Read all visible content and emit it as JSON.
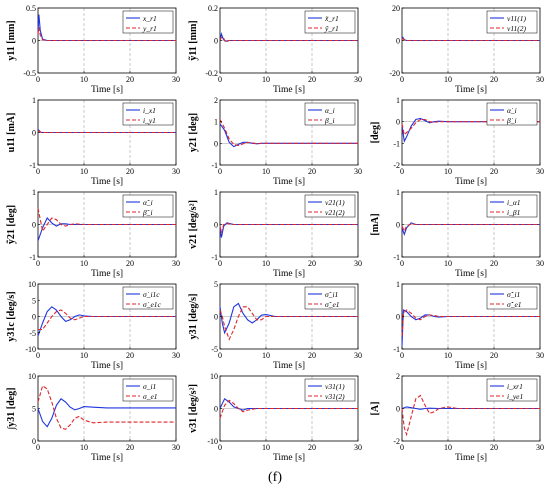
{
  "caption": "(f)",
  "colors": {
    "series1": "#1f35e0",
    "series2": "#e0262b",
    "grid": "#bdbdbd",
    "axis": "#000000"
  },
  "chart_data": [
    {
      "type": "line",
      "ylabel": "y11 [mm]",
      "xlabel": "Time [s]",
      "xlim": [
        0,
        30
      ],
      "ylim": [
        -0.5,
        0.5
      ],
      "xticks": [
        "0",
        "10",
        "20",
        "30"
      ],
      "yticks": [
        "-0.5",
        "0",
        "0.5"
      ],
      "series": [
        {
          "name": "x_r1",
          "x": [
            0,
            0.2,
            0.5,
            1,
            2,
            3,
            30
          ],
          "values": [
            0.12,
            0.4,
            0.15,
            0.02,
            0,
            0,
            0
          ]
        },
        {
          "name": "y_r1",
          "x": [
            0,
            0.2,
            0.5,
            1,
            2,
            3,
            30
          ],
          "values": [
            0.1,
            0.2,
            0.08,
            0.01,
            0,
            0,
            0
          ]
        }
      ]
    },
    {
      "type": "line",
      "ylabel": "ỹ11 [mm]",
      "xlabel": "Time [s]",
      "xlim": [
        0,
        30
      ],
      "ylim": [
        -0.2,
        0.2
      ],
      "xticks": [
        "0",
        "10",
        "20",
        "30"
      ],
      "yticks": [
        "-0.2",
        "0",
        "0.2"
      ],
      "series": [
        {
          "name": "x̃_r1",
          "x": [
            0,
            0.3,
            0.7,
            1.2,
            2,
            3,
            30
          ],
          "values": [
            0,
            0.04,
            0.01,
            -0.005,
            0,
            0,
            0
          ]
        },
        {
          "name": "ỹ_r1",
          "x": [
            0,
            0.3,
            0.7,
            1.2,
            2,
            3,
            30
          ],
          "values": [
            0,
            0.02,
            0.02,
            -0.01,
            0,
            0,
            0
          ]
        }
      ]
    },
    {
      "type": "line",
      "ylabel": "",
      "xlabel": "Time [s]",
      "xlim": [
        0,
        30
      ],
      "ylim": [
        -20,
        20
      ],
      "xticks": [
        "0",
        "10",
        "20",
        "30"
      ],
      "yticks": [
        "-20",
        "0",
        "20"
      ],
      "series": [
        {
          "name": "v11(1)",
          "x": [
            0,
            0.2,
            0.5,
            1,
            30
          ],
          "values": [
            1.5,
            2,
            0.5,
            0,
            0
          ]
        },
        {
          "name": "v11(2)",
          "x": [
            0,
            0.2,
            0.5,
            1,
            30
          ],
          "values": [
            1,
            1.2,
            0.3,
            0,
            0
          ]
        }
      ]
    },
    {
      "type": "line",
      "ylabel": "u11 [mA]",
      "xlabel": "Time [s]",
      "xlim": [
        0,
        30
      ],
      "ylim": [
        -1,
        1
      ],
      "xticks": [
        "0",
        "10",
        "20",
        "30"
      ],
      "yticks": [
        "-1",
        "0",
        "1"
      ],
      "series": [
        {
          "name": "i_x1",
          "x": [
            0,
            0.3,
            0.7,
            1.5,
            30
          ],
          "values": [
            0.1,
            0.05,
            0,
            0,
            0
          ]
        },
        {
          "name": "i_y1",
          "x": [
            0,
            0.3,
            0.7,
            1.5,
            30
          ],
          "values": [
            0.05,
            0.03,
            0,
            0,
            0
          ]
        }
      ]
    },
    {
      "type": "line",
      "ylabel": "y21 [deg]",
      "xlabel": "Time [s]",
      "xlim": [
        0,
        30
      ],
      "ylim": [
        -1,
        2
      ],
      "xticks": [
        "0",
        "10",
        "20",
        "30"
      ],
      "yticks": [
        "-1",
        "0",
        "1",
        "2"
      ],
      "series": [
        {
          "name": "α_i",
          "x": [
            0,
            1,
            2,
            3,
            4,
            5,
            6,
            7,
            8,
            9,
            10,
            30
          ],
          "values": [
            0.9,
            0.6,
            0.05,
            -0.15,
            -0.05,
            0.05,
            0.05,
            0,
            -0.02,
            0,
            0,
            0
          ]
        },
        {
          "name": "β_i",
          "x": [
            0,
            1,
            2,
            3,
            4,
            5,
            6,
            7,
            8,
            9,
            10,
            30
          ],
          "values": [
            1.1,
            0.7,
            0.2,
            -0.05,
            -0.1,
            -0.02,
            0.04,
            0.02,
            -0.01,
            0,
            0,
            0
          ]
        }
      ]
    },
    {
      "type": "line",
      "ylabel": "[deg]",
      "xlabel": "Time [s]",
      "xlim": [
        0,
        30
      ],
      "ylim": [
        -2,
        1
      ],
      "xticks": [
        "0",
        "10",
        "20",
        "30"
      ],
      "yticks": [
        "-2",
        "-1",
        "0",
        "1"
      ],
      "series": [
        {
          "name": "α̇_i",
          "x": [
            0,
            0.5,
            1,
            2,
            3,
            4,
            5,
            6,
            7,
            8,
            10,
            30
          ],
          "values": [
            -0.2,
            -0.9,
            -0.7,
            -0.2,
            0.1,
            0.15,
            0.05,
            -0.05,
            0,
            0.02,
            0,
            0
          ]
        },
        {
          "name": "β̇_i",
          "x": [
            0,
            0.5,
            1,
            2,
            3,
            4,
            5,
            6,
            7,
            8,
            10,
            30
          ],
          "values": [
            -0.1,
            -0.6,
            -0.5,
            -0.3,
            -0.05,
            0.1,
            0.1,
            0,
            -0.03,
            0,
            0,
            0
          ]
        }
      ]
    },
    {
      "type": "line",
      "ylabel": "ỹ21 [deg]",
      "xlabel": "Time [s]",
      "xlim": [
        0,
        30
      ],
      "ylim": [
        -1,
        1
      ],
      "xticks": [
        "0",
        "10",
        "20",
        "30"
      ],
      "yticks": [
        "-1",
        "0",
        "1"
      ],
      "series": [
        {
          "name": "α̃_i",
          "x": [
            0,
            1,
            2,
            3,
            4,
            5,
            6,
            7,
            8,
            10,
            30
          ],
          "values": [
            -0.5,
            -0.1,
            0.2,
            0.05,
            -0.05,
            0.02,
            0.02,
            0,
            0,
            0,
            0
          ]
        },
        {
          "name": "β̃_i",
          "x": [
            0,
            1,
            2,
            3,
            4,
            5,
            6,
            7,
            8,
            10,
            30
          ],
          "values": [
            0.5,
            -0.2,
            0,
            0.2,
            0.15,
            0,
            -0.05,
            0,
            0.02,
            0,
            0
          ]
        }
      ]
    },
    {
      "type": "line",
      "ylabel": "v21 [deg/s²]",
      "xlabel": "Time [s]",
      "xlim": [
        0,
        30
      ],
      "ylim": [
        -1,
        1
      ],
      "xticks": [
        "0",
        "10",
        "20",
        "30"
      ],
      "yticks": [
        "-1",
        "0",
        "1"
      ],
      "series": [
        {
          "name": "v21(1)",
          "x": [
            0,
            0.3,
            0.8,
            1.5,
            3,
            30
          ],
          "values": [
            -0.1,
            -0.4,
            -0.05,
            0.05,
            0,
            0
          ]
        },
        {
          "name": "v21(2)",
          "x": [
            0,
            0.3,
            0.8,
            1.5,
            3,
            30
          ],
          "values": [
            -0.05,
            -0.25,
            0,
            0.03,
            0,
            0
          ]
        }
      ]
    },
    {
      "type": "line",
      "ylabel": "[mA]",
      "xlabel": "Time [s]",
      "xlim": [
        0,
        30
      ],
      "ylim": [
        -1,
        1
      ],
      "xticks": [
        "0",
        "10",
        "20",
        "30"
      ],
      "yticks": [
        "-1",
        "0",
        "1"
      ],
      "series": [
        {
          "name": "i_α1",
          "x": [
            0,
            0.5,
            1,
            2,
            3,
            30
          ],
          "values": [
            -0.1,
            -0.3,
            -0.1,
            0.05,
            0,
            0
          ]
        },
        {
          "name": "i_β1",
          "x": [
            0,
            0.5,
            1,
            2,
            3,
            30
          ],
          "values": [
            -0.05,
            -0.2,
            -0.05,
            0.02,
            0,
            0
          ]
        }
      ]
    },
    {
      "type": "line",
      "ylabel": "y31c [deg/s]",
      "xlabel": "Time [s]",
      "xlim": [
        0,
        30
      ],
      "ylim": [
        -10,
        10
      ],
      "xticks": [
        "0",
        "10",
        "20",
        "30"
      ],
      "yticks": [
        "-10",
        "-5",
        "0",
        "5",
        "10"
      ],
      "series": [
        {
          "name": "σ̇_i1c",
          "x": [
            0,
            1,
            2,
            3,
            4,
            5,
            6,
            7,
            8,
            9,
            10,
            12,
            30
          ],
          "values": [
            -6,
            -2,
            1.5,
            3,
            2,
            0,
            -1.5,
            -1,
            0,
            0.5,
            0.2,
            0,
            0
          ]
        },
        {
          "name": "σ̇_e1c",
          "x": [
            0,
            1,
            2,
            3,
            4,
            5,
            6,
            7,
            8,
            9,
            10,
            12,
            30
          ],
          "values": [
            -4,
            -4,
            -2,
            0,
            1.5,
            2,
            1,
            -0.5,
            -1,
            -0.5,
            0,
            0,
            0
          ]
        }
      ]
    },
    {
      "type": "line",
      "ylabel": "y31 [deg/s]",
      "xlabel": "Time [s]",
      "xlim": [
        0,
        30
      ],
      "ylim": [
        -5,
        5
      ],
      "xticks": [
        "0",
        "10",
        "20",
        "30"
      ],
      "yticks": [
        "-5",
        "0",
        "5"
      ],
      "series": [
        {
          "name": "σ̃_i1",
          "x": [
            0,
            0.5,
            1,
            2,
            3,
            4,
            5,
            6,
            7,
            8,
            9,
            10,
            12,
            30
          ],
          "values": [
            1.5,
            -1,
            -2.5,
            -1,
            1.5,
            2,
            0.5,
            -0.5,
            -1,
            -0.5,
            0.2,
            0.3,
            0,
            0
          ]
        },
        {
          "name": "σ̃_e1",
          "x": [
            0,
            0.5,
            1,
            2,
            3,
            4,
            5,
            6,
            7,
            8,
            9,
            10,
            12,
            30
          ],
          "values": [
            1,
            0,
            -1.5,
            -3.5,
            -2,
            0,
            1.5,
            1.5,
            0.5,
            -0.5,
            -0.5,
            0,
            0,
            0
          ]
        }
      ]
    },
    {
      "type": "line",
      "ylabel": "",
      "xlabel": "Time [s]",
      "xlim": [
        0,
        30
      ],
      "ylim": [
        -1,
        1
      ],
      "xticks": [
        "0",
        "10",
        "20",
        "30"
      ],
      "yticks": [
        "-1",
        "0",
        "1"
      ],
      "series": [
        {
          "name": "σ̃̇_i1",
          "x": [
            0,
            0.3,
            1,
            2,
            3,
            4,
            5,
            6,
            7,
            8,
            10,
            12,
            30
          ],
          "values": [
            -0.9,
            0.2,
            0.15,
            0,
            -0.1,
            -0.05,
            0.05,
            0.05,
            0,
            -0.02,
            0,
            0,
            0
          ]
        },
        {
          "name": "σ̃̇_e1",
          "x": [
            0,
            0.3,
            1,
            2,
            3,
            4,
            5,
            6,
            7,
            8,
            10,
            12,
            30
          ],
          "values": [
            -0.6,
            0.1,
            0.2,
            0.1,
            -0.05,
            -0.1,
            0,
            0.05,
            0.03,
            0,
            0,
            0,
            0
          ]
        }
      ]
    },
    {
      "type": "line",
      "ylabel": "∫y31 [deg]",
      "xlabel": "Time [s]",
      "xlim": [
        0,
        30
      ],
      "ylim": [
        0,
        10
      ],
      "xticks": [
        "0",
        "10",
        "20",
        "30"
      ],
      "yticks": [
        "0",
        "5",
        "10"
      ],
      "series": [
        {
          "name": "σ_i1",
          "x": [
            0,
            1,
            2,
            3,
            4,
            5,
            6,
            7,
            8,
            9,
            10,
            12,
            15,
            30
          ],
          "values": [
            5,
            3,
            2.2,
            3.5,
            5.5,
            6.5,
            6,
            5.2,
            4.8,
            5,
            5.3,
            5.2,
            5.1,
            5.1
          ]
        },
        {
          "name": "σ_e1",
          "x": [
            0,
            1,
            2,
            3,
            4,
            5,
            6,
            7,
            8,
            9,
            10,
            12,
            15,
            30
          ],
          "values": [
            6,
            8.5,
            8,
            6,
            3.5,
            2,
            1.8,
            2.5,
            3.5,
            3.8,
            3.2,
            2.8,
            2.9,
            2.9
          ]
        }
      ]
    },
    {
      "type": "line",
      "ylabel": "v31 [deg/s²]",
      "xlabel": "Time [s]",
      "xlim": [
        0,
        30
      ],
      "ylim": [
        -10,
        10
      ],
      "xticks": [
        "0",
        "10",
        "20",
        "30"
      ],
      "yticks": [
        "-10",
        "0",
        "10"
      ],
      "series": [
        {
          "name": "v31(1)",
          "x": [
            0,
            1,
            2,
            3,
            4,
            5,
            6,
            8,
            10,
            30
          ],
          "values": [
            0,
            3,
            2,
            0.5,
            0,
            -0.5,
            0,
            0,
            0,
            0
          ]
        },
        {
          "name": "v31(2)",
          "x": [
            0,
            1,
            2,
            3,
            4,
            5,
            6,
            8,
            10,
            30
          ],
          "values": [
            -3,
            1,
            2.5,
            1.5,
            0,
            -1,
            -0.5,
            0,
            0,
            0
          ]
        }
      ]
    },
    {
      "type": "line",
      "ylabel": "[A]",
      "xlabel": "Time [s]",
      "xlim": [
        0,
        30
      ],
      "ylim": [
        -2,
        2
      ],
      "xticks": [
        "0",
        "10",
        "20",
        "30"
      ],
      "yticks": [
        "-2",
        "0",
        "2"
      ],
      "series": [
        {
          "name": "i_xr1",
          "x": [
            0,
            1,
            2,
            3,
            4,
            5,
            6,
            8,
            10,
            12,
            30
          ],
          "values": [
            0,
            0.1,
            0.05,
            0,
            -0.05,
            0,
            0.02,
            0,
            0,
            0,
            0
          ]
        },
        {
          "name": "i_ye1",
          "x": [
            0,
            0.5,
            1,
            2,
            3,
            4,
            5,
            6,
            7,
            8,
            10,
            12,
            30
          ],
          "values": [
            0,
            -1.2,
            -1.6,
            -0.5,
            0.6,
            0.8,
            0.2,
            -0.3,
            -0.2,
            0,
            0.1,
            0,
            0
          ]
        }
      ]
    }
  ]
}
